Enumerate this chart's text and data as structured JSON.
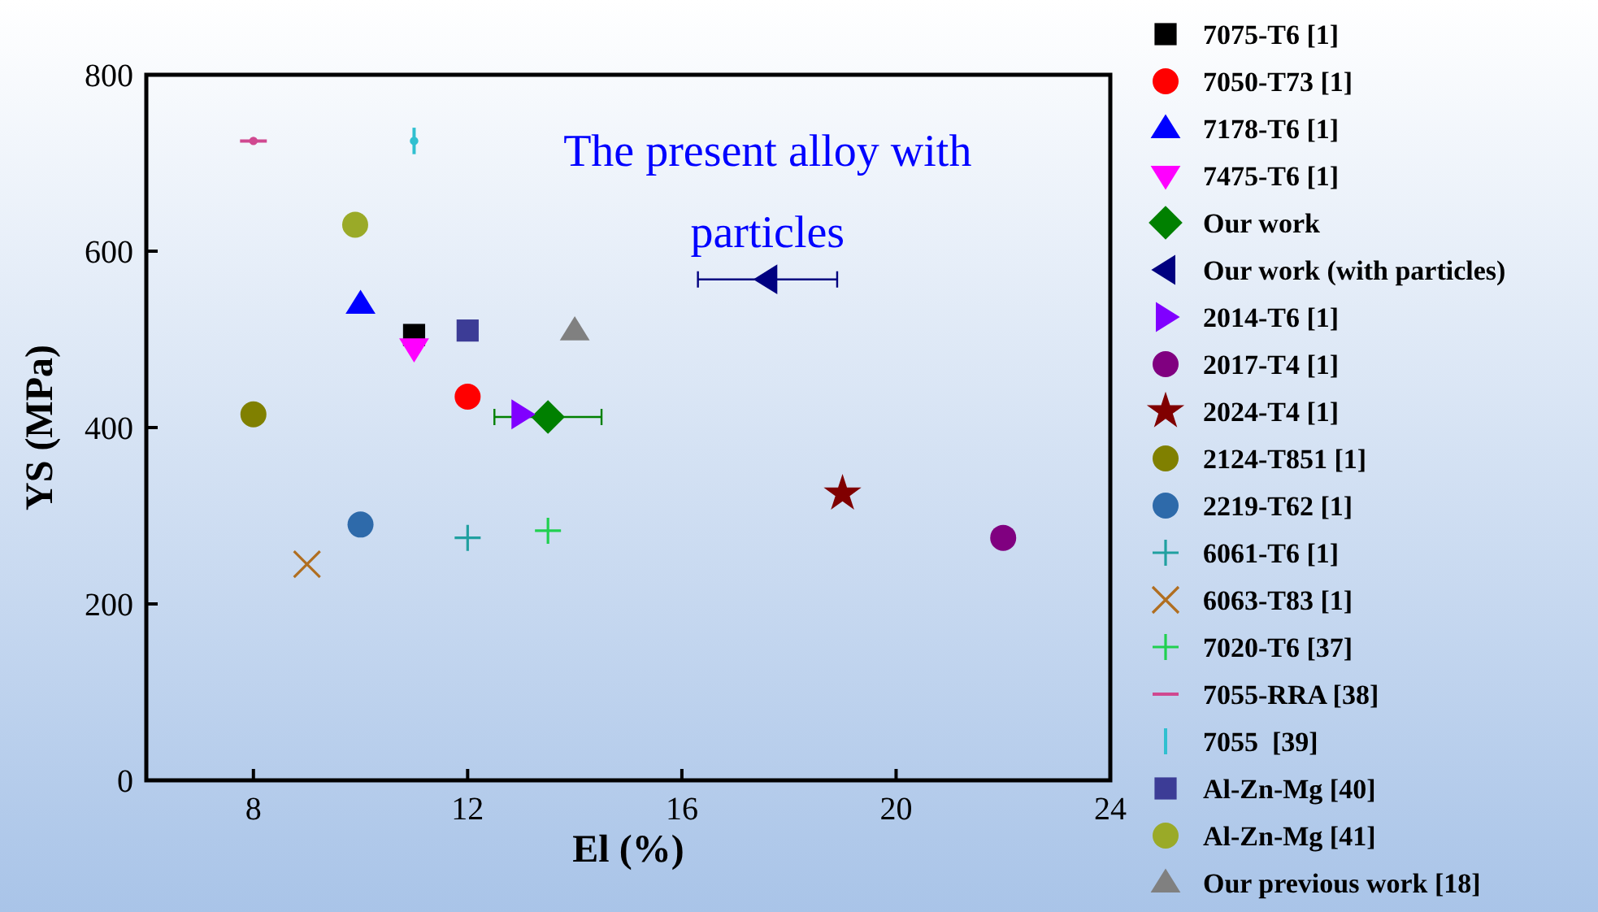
{
  "chart_data": {
    "type": "scatter",
    "xlabel": "El (%)",
    "ylabel": "YS (MPa)",
    "xlim": [
      6,
      24
    ],
    "xticks": [
      8,
      12,
      16,
      20,
      24
    ],
    "ylim": [
      0,
      800
    ],
    "yticks": [
      0,
      200,
      400,
      600,
      800
    ],
    "grid": false,
    "legend": "right",
    "annotations": [
      {
        "text": "The present alloy with particles",
        "x": 17.6,
        "y": 568
      }
    ],
    "series": [
      {
        "name": "7075-T6 [1]",
        "color": "#000000",
        "marker": "square",
        "x": [
          11
        ],
        "values": [
          505
        ]
      },
      {
        "name": "7050-T73 [1]",
        "color": "#ff0000",
        "marker": "circle",
        "x": [
          12
        ],
        "values": [
          435
        ]
      },
      {
        "name": "7178-T6 [1]",
        "color": "#0000ff",
        "marker": "triangle",
        "x": [
          10
        ],
        "values": [
          540
        ]
      },
      {
        "name": "7475-T6 [1]",
        "color": "#ff00ff",
        "marker": "triangle-down",
        "x": [
          11
        ],
        "values": [
          490
        ]
      },
      {
        "name": "Our work",
        "color": "#008000",
        "marker": "diamond",
        "x": [
          13.5
        ],
        "values": [
          412
        ],
        "xerrors": [
          1
        ]
      },
      {
        "name": "Our work (with particles)",
        "color": "#000080",
        "marker": "triangle-left",
        "x": [
          17.6
        ],
        "values": [
          568
        ],
        "xerrors": [
          1.3
        ]
      },
      {
        "name": "2014-T6 [1]",
        "color": "#8000ff",
        "marker": "triangle-right",
        "x": [
          13
        ],
        "values": [
          415
        ]
      },
      {
        "name": "2017-T4 [1]",
        "color": "#800080",
        "marker": "circle",
        "x": [
          22
        ],
        "values": [
          275
        ]
      },
      {
        "name": "2024-T4 [1]",
        "color": "#800000",
        "marker": "star",
        "x": [
          19
        ],
        "values": [
          325
        ]
      },
      {
        "name": "2124-T851 [1]",
        "color": "#808000",
        "marker": "circle",
        "x": [
          8
        ],
        "values": [
          415
        ]
      },
      {
        "name": "2219-T62 [1]",
        "color": "#2e6aaa",
        "marker": "circle",
        "x": [
          10
        ],
        "values": [
          290
        ]
      },
      {
        "name": "6061-T6 [1]",
        "color": "#20a0a0",
        "marker": "cross",
        "x": [
          12
        ],
        "values": [
          275
        ]
      },
      {
        "name": "6063-T83 [1]",
        "color": "#b06e20",
        "marker": "x",
        "x": [
          9
        ],
        "values": [
          245
        ]
      },
      {
        "name": "7020-T6 [37]",
        "color": "#20d050",
        "marker": "cross",
        "x": [
          13.5
        ],
        "values": [
          283
        ]
      },
      {
        "name": "7055-RRA [38]",
        "color": "#d04890",
        "x": [
          8
        ],
        "values": [
          725
        ],
        "xerrors": [
          0.25
        ]
      },
      {
        "name": "7055  [39]",
        "color": "#30c0d0",
        "x": [
          11
        ],
        "values": [
          725
        ],
        "errors": [
          15
        ]
      },
      {
        "name": "Al-Zn-Mg [40]",
        "color": "#3c3c96",
        "marker": "square",
        "x": [
          12
        ],
        "values": [
          510
        ]
      },
      {
        "name": "Al-Zn-Mg [41]",
        "color": "#9aaa28",
        "marker": "circle",
        "x": [
          9.9
        ],
        "values": [
          630
        ]
      },
      {
        "name": "Our previous work [18]",
        "color": "#808080",
        "marker": "triangle",
        "x": [
          14
        ],
        "values": [
          510
        ]
      }
    ]
  }
}
